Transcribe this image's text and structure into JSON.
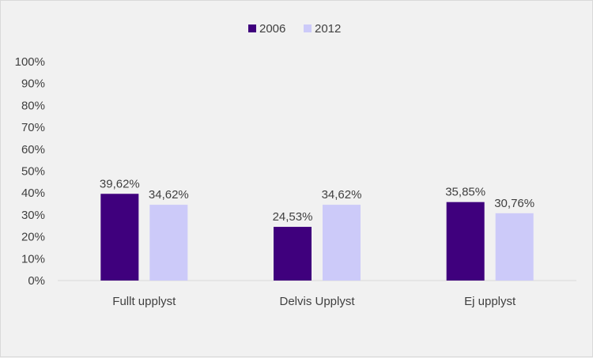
{
  "chart_data": {
    "type": "bar",
    "categories": [
      "Fullt upplyst",
      "Delvis Upplyst",
      "Ej upplyst"
    ],
    "series": [
      {
        "name": "2006",
        "color": "#3f007d",
        "values": [
          39.62,
          24.53,
          35.85
        ],
        "labels": [
          "39,62%",
          "24,53%",
          "35,85%"
        ]
      },
      {
        "name": "2012",
        "color": "#cccaf9",
        "values": [
          34.62,
          34.62,
          30.76
        ],
        "labels": [
          "34,62%",
          "34,62%",
          "30,76%"
        ]
      }
    ],
    "y_ticks": [
      "0%",
      "10%",
      "20%",
      "30%",
      "40%",
      "50%",
      "60%",
      "70%",
      "80%",
      "90%",
      "100%"
    ],
    "ylim": [
      0,
      100
    ],
    "grid": false,
    "legend_position": "top-center"
  }
}
